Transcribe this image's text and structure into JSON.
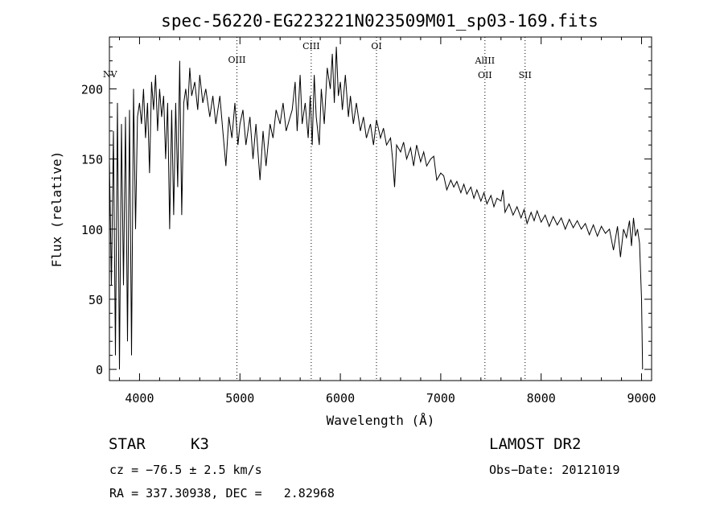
{
  "chart_data": {
    "type": "line",
    "title": "spec-56220-EG223221N023509M01_sp03-169.fits",
    "xlabel": "Wavelength (Å)",
    "ylabel": "Flux (relative)",
    "xlim": [
      3700,
      9100
    ],
    "ylim": [
      -8,
      237
    ],
    "x_ticks": [
      4000,
      5000,
      6000,
      7000,
      8000,
      9000
    ],
    "y_ticks": [
      0,
      50,
      100,
      150,
      200
    ],
    "grid": false,
    "series": [
      {
        "points": [
          [
            3700,
            150
          ],
          [
            3720,
            60
          ],
          [
            3740,
            170
          ],
          [
            3760,
            10
          ],
          [
            3780,
            190
          ],
          [
            3800,
            0
          ],
          [
            3820,
            175
          ],
          [
            3840,
            60
          ],
          [
            3860,
            180
          ],
          [
            3880,
            20
          ],
          [
            3900,
            185
          ],
          [
            3920,
            10
          ],
          [
            3940,
            200
          ],
          [
            3960,
            100
          ],
          [
            3980,
            180
          ],
          [
            4000,
            190
          ],
          [
            4020,
            175
          ],
          [
            4040,
            200
          ],
          [
            4060,
            165
          ],
          [
            4080,
            190
          ],
          [
            4100,
            140
          ],
          [
            4120,
            205
          ],
          [
            4140,
            185
          ],
          [
            4160,
            210
          ],
          [
            4180,
            170
          ],
          [
            4200,
            200
          ],
          [
            4220,
            180
          ],
          [
            4240,
            195
          ],
          [
            4260,
            150
          ],
          [
            4280,
            190
          ],
          [
            4300,
            100
          ],
          [
            4320,
            185
          ],
          [
            4340,
            110
          ],
          [
            4360,
            190
          ],
          [
            4380,
            130
          ],
          [
            4400,
            220
          ],
          [
            4420,
            110
          ],
          [
            4440,
            190
          ],
          [
            4460,
            200
          ],
          [
            4480,
            185
          ],
          [
            4500,
            215
          ],
          [
            4520,
            195
          ],
          [
            4550,
            205
          ],
          [
            4580,
            185
          ],
          [
            4600,
            210
          ],
          [
            4630,
            190
          ],
          [
            4660,
            200
          ],
          [
            4700,
            180
          ],
          [
            4730,
            195
          ],
          [
            4760,
            175
          ],
          [
            4800,
            195
          ],
          [
            4830,
            170
          ],
          [
            4860,
            145
          ],
          [
            4890,
            180
          ],
          [
            4920,
            165
          ],
          [
            4950,
            190
          ],
          [
            4980,
            160
          ],
          [
            5000,
            175
          ],
          [
            5030,
            185
          ],
          [
            5060,
            160
          ],
          [
            5100,
            180
          ],
          [
            5130,
            150
          ],
          [
            5160,
            175
          ],
          [
            5200,
            135
          ],
          [
            5230,
            170
          ],
          [
            5260,
            145
          ],
          [
            5300,
            175
          ],
          [
            5330,
            165
          ],
          [
            5360,
            185
          ],
          [
            5400,
            175
          ],
          [
            5430,
            190
          ],
          [
            5460,
            170
          ],
          [
            5500,
            180
          ],
          [
            5520,
            185
          ],
          [
            5550,
            205
          ],
          [
            5570,
            170
          ],
          [
            5600,
            210
          ],
          [
            5620,
            175
          ],
          [
            5650,
            190
          ],
          [
            5680,
            165
          ],
          [
            5700,
            195
          ],
          [
            5720,
            160
          ],
          [
            5740,
            210
          ],
          [
            5760,
            180
          ],
          [
            5790,
            160
          ],
          [
            5810,
            200
          ],
          [
            5840,
            175
          ],
          [
            5870,
            215
          ],
          [
            5900,
            200
          ],
          [
            5920,
            225
          ],
          [
            5940,
            190
          ],
          [
            5960,
            230
          ],
          [
            5980,
            195
          ],
          [
            6000,
            205
          ],
          [
            6020,
            185
          ],
          [
            6050,
            210
          ],
          [
            6080,
            180
          ],
          [
            6100,
            195
          ],
          [
            6130,
            175
          ],
          [
            6160,
            190
          ],
          [
            6200,
            170
          ],
          [
            6230,
            180
          ],
          [
            6260,
            165
          ],
          [
            6300,
            175
          ],
          [
            6330,
            160
          ],
          [
            6360,
            178
          ],
          [
            6400,
            165
          ],
          [
            6430,
            172
          ],
          [
            6460,
            160
          ],
          [
            6500,
            165
          ],
          [
            6520,
            150
          ],
          [
            6540,
            130
          ],
          [
            6560,
            160
          ],
          [
            6600,
            155
          ],
          [
            6630,
            162
          ],
          [
            6660,
            150
          ],
          [
            6700,
            158
          ],
          [
            6730,
            145
          ],
          [
            6760,
            160
          ],
          [
            6800,
            148
          ],
          [
            6830,
            155
          ],
          [
            6860,
            145
          ],
          [
            6900,
            150
          ],
          [
            6930,
            152
          ],
          [
            6960,
            135
          ],
          [
            7000,
            140
          ],
          [
            7030,
            138
          ],
          [
            7060,
            128
          ],
          [
            7100,
            135
          ],
          [
            7130,
            130
          ],
          [
            7160,
            134
          ],
          [
            7200,
            126
          ],
          [
            7230,
            132
          ],
          [
            7260,
            125
          ],
          [
            7300,
            130
          ],
          [
            7330,
            122
          ],
          [
            7360,
            128
          ],
          [
            7400,
            120
          ],
          [
            7430,
            126
          ],
          [
            7460,
            118
          ],
          [
            7500,
            124
          ],
          [
            7530,
            116
          ],
          [
            7560,
            122
          ],
          [
            7600,
            120
          ],
          [
            7620,
            128
          ],
          [
            7640,
            112
          ],
          [
            7680,
            118
          ],
          [
            7720,
            110
          ],
          [
            7760,
            116
          ],
          [
            7800,
            108
          ],
          [
            7830,
            114
          ],
          [
            7860,
            104
          ],
          [
            7900,
            112
          ],
          [
            7930,
            106
          ],
          [
            7960,
            113
          ],
          [
            8000,
            105
          ],
          [
            8040,
            110
          ],
          [
            8080,
            102
          ],
          [
            8120,
            109
          ],
          [
            8160,
            103
          ],
          [
            8200,
            108
          ],
          [
            8240,
            100
          ],
          [
            8280,
            107
          ],
          [
            8320,
            101
          ],
          [
            8360,
            106
          ],
          [
            8400,
            100
          ],
          [
            8440,
            104
          ],
          [
            8480,
            96
          ],
          [
            8520,
            103
          ],
          [
            8560,
            95
          ],
          [
            8600,
            102
          ],
          [
            8640,
            97
          ],
          [
            8680,
            100
          ],
          [
            8720,
            85
          ],
          [
            8760,
            102
          ],
          [
            8790,
            80
          ],
          [
            8820,
            100
          ],
          [
            8850,
            94
          ],
          [
            8880,
            106
          ],
          [
            8900,
            88
          ],
          [
            8920,
            108
          ],
          [
            8940,
            95
          ],
          [
            8960,
            100
          ],
          [
            8980,
            90
          ],
          [
            9000,
            50
          ],
          [
            9010,
            0
          ]
        ]
      }
    ],
    "annotations": [
      {
        "label": "NV",
        "x": 3740
      },
      {
        "label": "OIII",
        "x": 4970
      },
      {
        "label": "CIII",
        "x": 5710
      },
      {
        "label": "OI",
        "x": 6360
      },
      {
        "label": "AlIII",
        "x": 7440
      },
      {
        "label": "OII",
        "x": 7440
      },
      {
        "label": "SII",
        "x": 7840
      }
    ]
  },
  "info": {
    "object_class": "STAR",
    "subclass": "K3",
    "survey": "LAMOST DR2",
    "cz": "cz = −76.5 ± 2.5 km/s",
    "obs_date": "Obs−Date: 20121019",
    "coords": "RA = 337.30938, DEC =   2.82968"
  },
  "colors": {
    "line": "#000000",
    "background": "#ffffff"
  }
}
